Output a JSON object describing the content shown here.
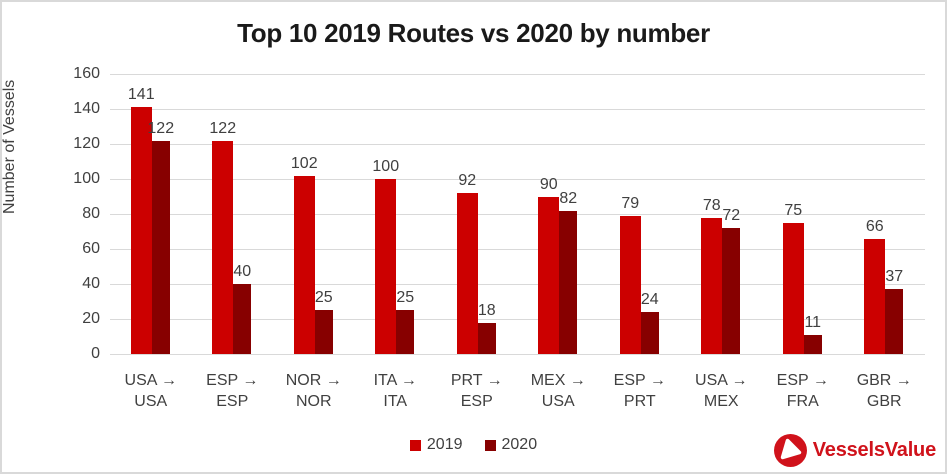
{
  "title": "Top 10 2019 Routes vs 2020 by number",
  "ylabel": "Number of Vessels",
  "legend": [
    "2019",
    "2020"
  ],
  "logo": {
    "text": "VesselsValue"
  },
  "colors": {
    "series_2019": "#cc0000",
    "series_2020": "#870000",
    "gridline": "#d9d9d9",
    "axis_text": "#404040",
    "title_text": "#1a1a1a",
    "logo_red": "#d0121b"
  },
  "chart_data": {
    "type": "bar",
    "title": "Top 10 2019 Routes vs 2020 by number",
    "xlabel": "",
    "ylabel": "Number of Vessels",
    "ylim": [
      0,
      160
    ],
    "ytick_step": 20,
    "grid": true,
    "legend_position": "bottom",
    "categories": [
      "USA → USA",
      "ESP → ESP",
      "NOR → NOR",
      "ITA → ITA",
      "PRT → ESP",
      "MEX → USA",
      "ESP → PRT",
      "USA → MEX",
      "ESP → FRA",
      "GBR → GBR"
    ],
    "series": [
      {
        "name": "2019",
        "color": "#cc0000",
        "values": [
          141,
          122,
          102,
          100,
          92,
          90,
          79,
          78,
          75,
          66
        ]
      },
      {
        "name": "2020",
        "color": "#870000",
        "values": [
          122,
          40,
          25,
          25,
          18,
          82,
          24,
          72,
          11,
          37
        ]
      }
    ]
  }
}
